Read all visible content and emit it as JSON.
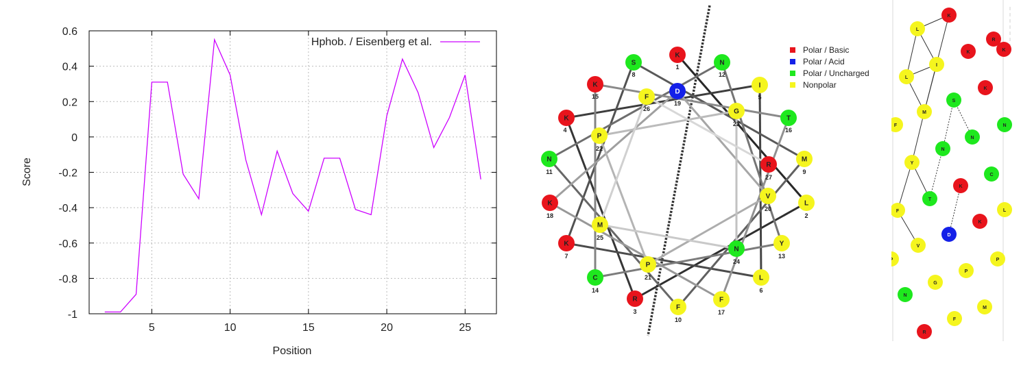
{
  "chart_data": [
    {
      "type": "line",
      "xlabel": "Position",
      "ylabel": "Score",
      "xlim": [
        1,
        27
      ],
      "ylim": [
        -1,
        0.6
      ],
      "x_ticks": [
        5,
        10,
        15,
        20,
        25
      ],
      "y_ticks": [
        -1,
        -0.8,
        -0.6,
        -0.4,
        -0.2,
        0,
        0.2,
        0.4,
        0.6
      ],
      "y_tick_labels": [
        "-1",
        "-0.8",
        "-0.6",
        "-0.4",
        "-0.2",
        "0",
        "0.2",
        "0.4",
        "0.6"
      ],
      "grid": true,
      "legend_position": "top-right",
      "series": [
        {
          "name": "Hphob. / Eisenberg et al.",
          "color": "#cc00ff",
          "x": [
            2,
            3,
            4,
            5,
            6,
            7,
            8,
            9,
            10,
            11,
            12,
            13,
            14,
            15,
            16,
            17,
            18,
            19,
            20,
            21,
            22,
            23,
            24,
            25,
            26
          ],
          "y": [
            -0.99,
            -0.99,
            -0.89,
            0.31,
            0.31,
            -0.21,
            -0.35,
            0.55,
            0.35,
            -0.13,
            -0.44,
            -0.08,
            -0.32,
            -0.42,
            -0.12,
            -0.12,
            -0.41,
            -0.44,
            0.12,
            0.44,
            0.25,
            -0.06,
            0.11,
            0.35,
            -0.24
          ]
        }
      ]
    },
    {
      "type": "helical-wheel",
      "legend": [
        {
          "label": "Polar / Basic",
          "color": "#e8141c"
        },
        {
          "label": "Polar / Acid",
          "color": "#1420e8"
        },
        {
          "label": "Polar / Uncharged",
          "color": "#1ee81e"
        },
        {
          "label": "Nonpolar",
          "color": "#f5f51e"
        }
      ],
      "residues": [
        {
          "letter": "K",
          "number": "1"
        },
        {
          "letter": "L",
          "number": "2"
        },
        {
          "letter": "R",
          "number": "3"
        },
        {
          "letter": "K",
          "number": "4"
        },
        {
          "letter": "I",
          "number": "5"
        },
        {
          "letter": "L",
          "number": "6"
        },
        {
          "letter": "K",
          "number": "7"
        },
        {
          "letter": "S",
          "number": "8"
        },
        {
          "letter": "M",
          "number": "9"
        },
        {
          "letter": "F",
          "number": "10"
        },
        {
          "letter": "N",
          "number": "11"
        },
        {
          "letter": "N",
          "number": "12"
        },
        {
          "letter": "Y",
          "number": "13"
        },
        {
          "letter": "C",
          "number": "14"
        },
        {
          "letter": "K",
          "number": "15"
        },
        {
          "letter": "T",
          "number": "16"
        },
        {
          "letter": "F",
          "number": "17"
        },
        {
          "letter": "K",
          "number": "18"
        },
        {
          "letter": "D",
          "number": "19"
        },
        {
          "letter": "V",
          "number": "20"
        },
        {
          "letter": "P",
          "number": "21"
        },
        {
          "letter": "P",
          "number": "22"
        },
        {
          "letter": "G",
          "number": "23"
        },
        {
          "letter": "N",
          "number": "24"
        },
        {
          "letter": "M",
          "number": "25"
        },
        {
          "letter": "F",
          "number": "26"
        },
        {
          "letter": "R",
          "number": "27"
        }
      ]
    },
    {
      "type": "helical-net",
      "residues": [
        "K",
        "L",
        "R",
        "K",
        "I",
        "L",
        "K",
        "S",
        "M",
        "F",
        "N",
        "N",
        "Y",
        "C",
        "K",
        "T",
        "F",
        "K",
        "D",
        "V",
        "P",
        "P",
        "G",
        "N",
        "M",
        "F",
        "R"
      ]
    }
  ]
}
